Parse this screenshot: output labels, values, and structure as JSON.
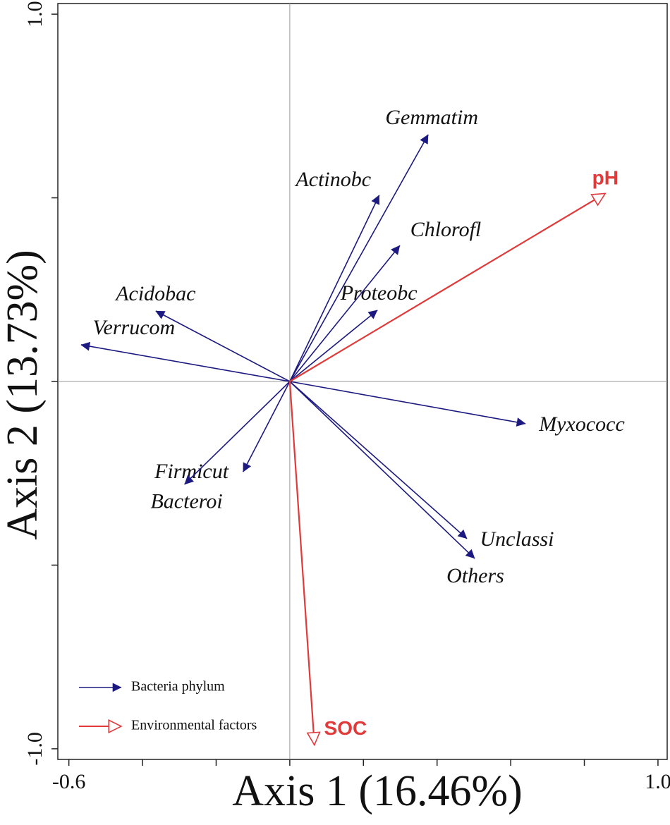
{
  "chart_data": {
    "type": "biplot",
    "x_label": "Axis 1 (16.46%)",
    "y_label": "Axis 2 (13.73%)",
    "xlim": [
      -0.63,
      1.025
    ],
    "ylim": [
      -1.029,
      1.029
    ],
    "xticks": [
      -0.6,
      {
        "value": -0.4,
        "label": null
      },
      {
        "value": -0.2,
        "label": null
      },
      {
        "value": 0,
        "label": null
      },
      {
        "value": 0.2,
        "label": null
      },
      {
        "value": 0.4,
        "label": null
      },
      {
        "value": 0.6,
        "label": null
      },
      {
        "value": 0.8,
        "label": null
      },
      {
        "value": 1,
        "label": "1.0"
      }
    ],
    "yticks": [
      {
        "value": -1,
        "label": "-1.0"
      },
      {
        "value": -0.5,
        "label": null
      },
      {
        "value": 0,
        "label": null
      },
      {
        "value": 0.5,
        "label": null
      },
      {
        "value": 1,
        "label": "1.0"
      }
    ],
    "series": [
      {
        "name": "Bacteria phylum",
        "color": "#1c1a80",
        "labels": [
          "Gemmatim",
          "Actinobc",
          "Chlorofl",
          "Proteobc",
          "Acidobac",
          "Verrucom",
          "Myxococc",
          "Firmicut",
          "Bacteroi",
          "Unclassi",
          "Others"
        ],
        "x": [
          0.376,
          0.243,
          0.299,
          0.238,
          -0.364,
          -0.567,
          0.64,
          -0.127,
          -0.286,
          0.481,
          0.502
        ],
        "values": [
          0.672,
          0.507,
          0.37,
          0.194,
          0.192,
          0.1,
          -0.115,
          -0.246,
          -0.28,
          -0.428,
          -0.482
        ]
      },
      {
        "name": "Environmental factors",
        "color": "#e03a3a",
        "labels": [
          "pH",
          "SOC"
        ],
        "x": [
          0.857,
          0.067
        ],
        "values": [
          0.512,
          -0.99
        ]
      }
    ]
  }
}
